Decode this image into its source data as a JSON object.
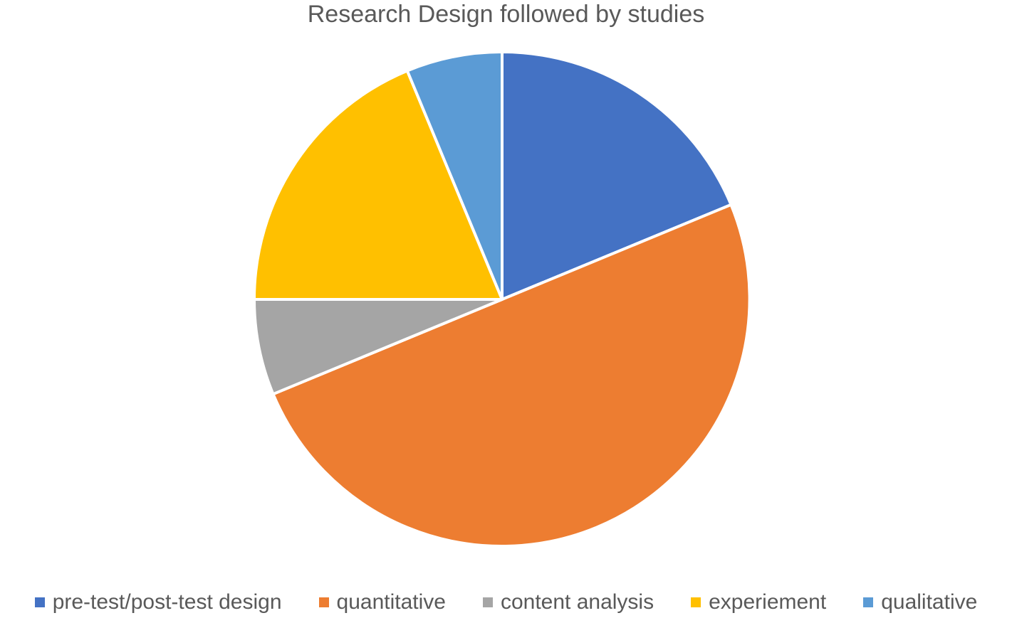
{
  "chart_data": {
    "type": "pie",
    "title": "Research Design followed by studies",
    "legend_position": "bottom",
    "categories": [
      "pre-test/post-test design",
      "quantitative",
      "content analysis",
      "experiement",
      "qualitative"
    ],
    "values": [
      3,
      8,
      1,
      3,
      1
    ],
    "colors": [
      "#4472C4",
      "#ED7D31",
      "#A5A5A5",
      "#FFC000",
      "#5B9BD5"
    ]
  }
}
